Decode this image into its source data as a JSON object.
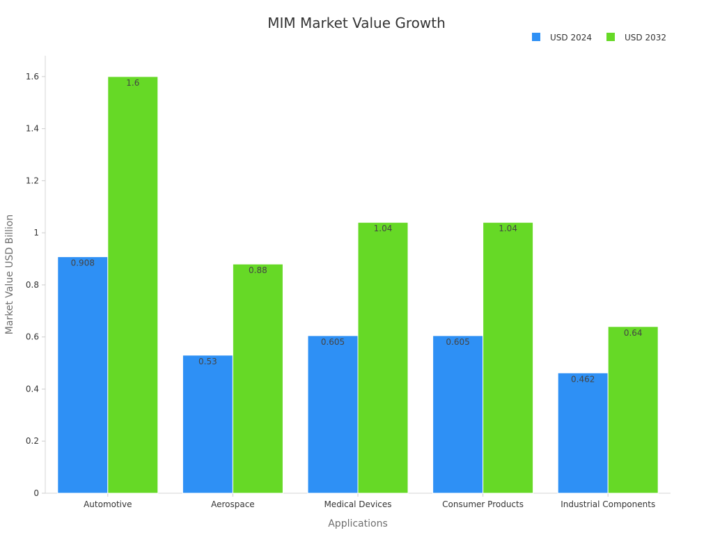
{
  "chart_data": {
    "type": "bar",
    "title": "MIM Market Value Growth",
    "xlabel": "Applications",
    "ylabel": "Market Value USD Billion",
    "categories": [
      "Automotive",
      "Aerospace",
      "Medical Devices",
      "Consumer Products",
      "Industrial Components"
    ],
    "series": [
      {
        "name": "USD 2024",
        "color": "#2e90f5",
        "values": [
          0.908,
          0.53,
          0.605,
          0.605,
          0.462
        ]
      },
      {
        "name": "USD 2032",
        "color": "#66d926",
        "values": [
          1.6,
          0.88,
          1.04,
          1.04,
          0.64
        ]
      }
    ],
    "data_labels": [
      [
        "0.908",
        "0.53",
        "0.605",
        "0.605",
        "0.462"
      ],
      [
        "1.6",
        "0.88",
        "1.04",
        "1.04",
        "0.64"
      ]
    ],
    "y_ticks": [
      {
        "value": 0,
        "label": "0"
      },
      {
        "value": 0.2,
        "label": "0.2"
      },
      {
        "value": 0.4,
        "label": "0.4"
      },
      {
        "value": 0.6,
        "label": "0.6"
      },
      {
        "value": 0.8,
        "label": "0.8"
      },
      {
        "value": 1,
        "label": "1"
      },
      {
        "value": 1.2,
        "label": "1.2"
      },
      {
        "value": 1.4,
        "label": "1.4"
      },
      {
        "value": 1.6,
        "label": "1.6"
      }
    ],
    "ylim": [
      0,
      1.68
    ],
    "grid": false,
    "legend_position": "top-right"
  }
}
